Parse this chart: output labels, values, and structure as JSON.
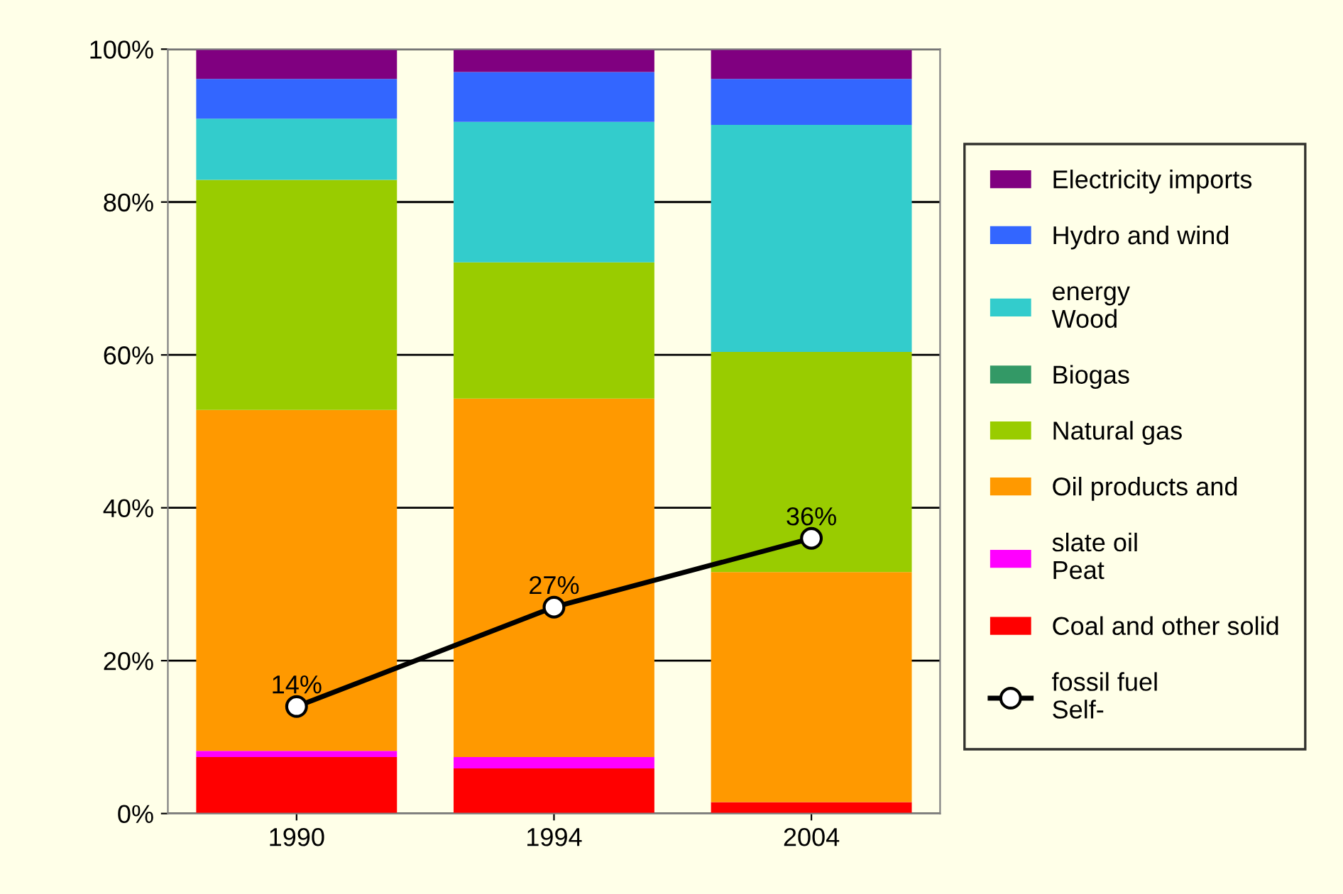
{
  "chart_data": {
    "type": "bar",
    "stacked": true,
    "categories": [
      "1990",
      "1994",
      "2004"
    ],
    "series": [
      {
        "name": "Coal and other solid",
        "color": "#ff0000",
        "values": [
          7.4,
          5.9,
          1.5
        ]
      },
      {
        "name": "slate oil\nPeat",
        "color": "#ff00ff",
        "values": [
          0.8,
          1.5,
          0
        ]
      },
      {
        "name": "Oil products and",
        "color": "#ff9900",
        "values": [
          44.6,
          46.9,
          30.1
        ]
      },
      {
        "name": "Natural gas",
        "color": "#99cc00",
        "values": [
          30.1,
          17.8,
          28.8
        ]
      },
      {
        "name": "Biogas",
        "color": "#339966",
        "values": [
          0,
          0,
          0
        ]
      },
      {
        "name": "energy\nWood",
        "color": "#33cccc",
        "values": [
          8,
          18.4,
          29.7
        ]
      },
      {
        "name": "Hydro and wind",
        "color": "#3366ff",
        "values": [
          5.2,
          6.5,
          6
        ]
      },
      {
        "name": "Electricity imports",
        "color": "#800080",
        "values": [
          3.9,
          3,
          3.9
        ]
      },
      {
        "name": "fossil fuel\nSelf-",
        "type": "line",
        "color": "#000000",
        "marker": "circle",
        "values": [
          14,
          27,
          36
        ],
        "value_labels": [
          "14%",
          "27%",
          "36%"
        ]
      }
    ],
    "ylim": [
      0,
      100
    ],
    "yticks": [
      {
        "value": 0,
        "label": "0%"
      },
      {
        "value": 20,
        "label": "20%"
      },
      {
        "value": 40,
        "label": "40%"
      },
      {
        "value": 60,
        "label": "60%"
      },
      {
        "value": 80,
        "label": "80%"
      },
      {
        "value": 100,
        "label": "100%"
      }
    ],
    "grid": "y",
    "legend": "right"
  }
}
